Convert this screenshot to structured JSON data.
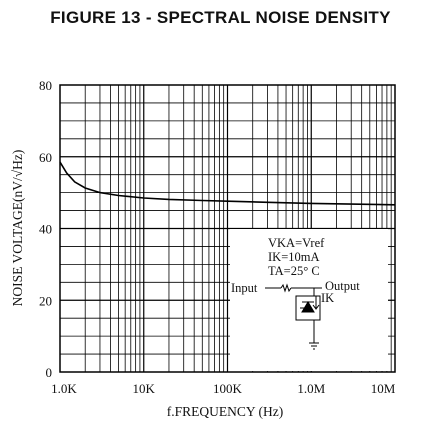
{
  "chart_data": {
    "type": "line",
    "title": "FIGURE 13 - SPECTRAL NOISE DENSITY",
    "xlabel": "f.FREQUENCY    (Hz)",
    "ylabel": "NOISE VOLTAGE(nV/√Hz)",
    "x_scale": "log",
    "xlim": [
      1000,
      10000000
    ],
    "ylim": [
      0,
      80
    ],
    "x_tick_labels": [
      "1.0K",
      "10K",
      "100K",
      "1.0M",
      "10M"
    ],
    "y_ticks": [
      0,
      20,
      40,
      60,
      80
    ],
    "grid": true,
    "series": [
      {
        "x": [
          1000,
          1200,
          1500,
          2000,
          3000,
          5000,
          10000,
          20000,
          50000,
          100000,
          300000,
          1000000,
          3000000,
          10000000
        ],
        "y": [
          58.5,
          55.5,
          53.0,
          51.3,
          50.0,
          49.2,
          48.5,
          48.1,
          47.8,
          47.6,
          47.3,
          47.0,
          46.8,
          46.6
        ]
      }
    ],
    "annotation": {
      "lines": [
        "VKA=Vref",
        "IK=10mA",
        "TA=25° C"
      ],
      "input_label": "Input",
      "output_label": "Output",
      "current_label": "IK"
    }
  }
}
